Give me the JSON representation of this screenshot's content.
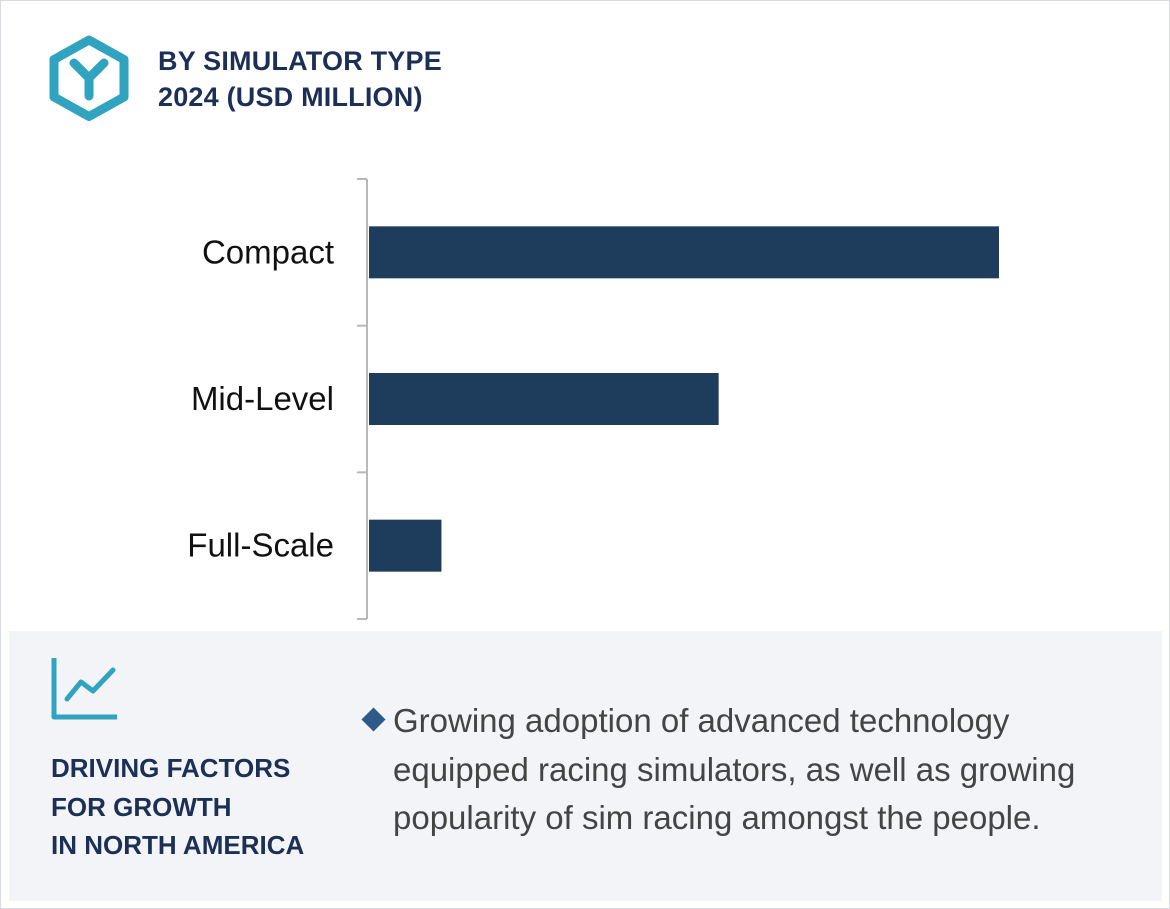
{
  "header": {
    "title_line1": "BY SIMULATOR TYPE",
    "title_line2": "2024 (USD MILLION)"
  },
  "icons": {
    "logo": "hexagon-y-logo-icon",
    "trend": "line-chart-trend-icon",
    "bullet": "diamond-bullet-icon"
  },
  "colors": {
    "bar": "#1e3d5c",
    "title": "#1c2f55",
    "accent_teal": "#2fa3bf",
    "footer_bg": "#f3f4f8",
    "bullet": "#2e5a89"
  },
  "chart_data": {
    "type": "bar",
    "orientation": "horizontal",
    "title": "BY SIMULATOR TYPE 2024 (USD MILLION)",
    "categories": [
      "Compact",
      "Mid-Level",
      "Full-Scale"
    ],
    "values": [
      100,
      55.5,
      11.5
    ],
    "xlabel": "",
    "ylabel": "",
    "xlim": [
      0,
      100
    ],
    "value_axis_shown": false,
    "grid": false,
    "legend": "none"
  },
  "footer": {
    "title_lines": [
      "DRIVING FACTORS",
      "FOR GROWTH",
      "IN NORTH AMERICA"
    ],
    "bullet_text": "Growing adoption of advanced technology equipped racing simulators, as well as growing popularity of sim racing amongst the people."
  }
}
